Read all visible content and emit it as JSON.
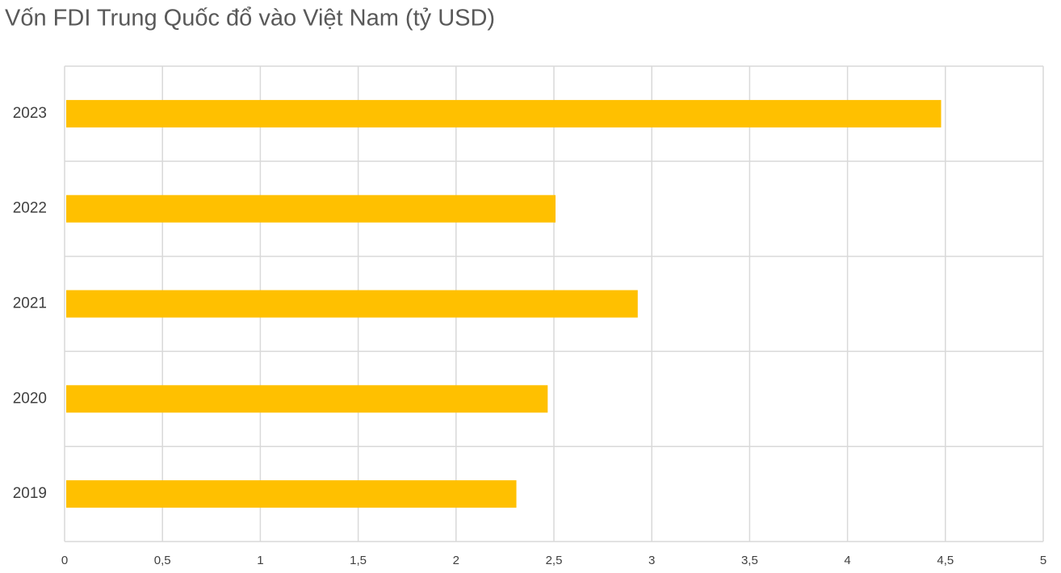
{
  "chart_data": {
    "type": "bar",
    "orientation": "horizontal",
    "title": "Vốn FDI Trung Quốc đổ vào Việt Nam (tỷ USD)",
    "categories": [
      "2023",
      "2022",
      "2021",
      "2020",
      "2019"
    ],
    "values": [
      4.47,
      2.5,
      2.92,
      2.46,
      2.3
    ],
    "color": "#ffc000",
    "xlim": [
      0,
      5
    ],
    "xticks": [
      0,
      {
        "value": 0.5,
        "label": "0,5"
      },
      1,
      {
        "value": 1.5,
        "label": "1,5"
      },
      2,
      {
        "value": 2.5,
        "label": "2,5"
      },
      3,
      {
        "value": 3.5,
        "label": "3,5"
      },
      4,
      {
        "value": 4.5,
        "label": "4,5"
      },
      5
    ],
    "grid": true
  }
}
